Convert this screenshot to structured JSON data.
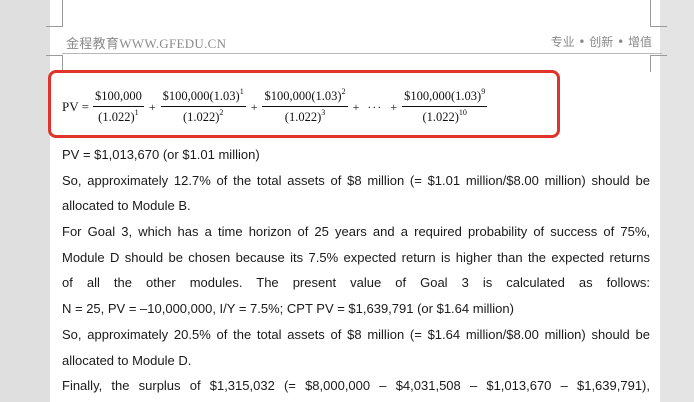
{
  "header": {
    "brand": "金程教育WWW.GFEDU.CN",
    "slogan": "专业 • 创新 • 增值"
  },
  "formula": {
    "lhs": "PV =",
    "terms": [
      {
        "num": "$100,000",
        "num_exp": "",
        "den": "(1.022)",
        "den_exp": "1"
      },
      {
        "num": "$100,000(1.03)",
        "num_exp": "1",
        "den": "(1.022)",
        "den_exp": "2"
      },
      {
        "num": "$100,000(1.03)",
        "num_exp": "2",
        "den": "(1.022)",
        "den_exp": "3"
      },
      {
        "num": "$100,000(1.03)",
        "num_exp": "9",
        "den": "(1.022)",
        "den_exp": "10"
      }
    ],
    "plus": "+",
    "ellipsis": "···"
  },
  "body": {
    "lines": [
      "PV = $1,013,670 (or $1.01 million)",
      "So, approximately 12.7% of the total assets of $8 million (= $1.01 million/$8.00 million) should be",
      "allocated to Module B.",
      "For Goal 3, which has a time horizon of 25 years and a required probability of success of 75%,",
      "Module D should be chosen because its 7.5% expected return is higher than the expected returns",
      "of all the other modules. The present value of Goal 3 is calculated as follows:",
      "N = 25, PV = –10,000,000, I/Y = 7.5%; CPT PV = $1,639,791 (or $1.64 million)",
      "So, approximately 20.5% of the total assets of $8 million (= $1.64 million/$8.00 million) should be",
      "allocated to Module D.",
      "Finally, the surplus of $1,315,032 (= $8,000,000 – $4,031,508 – $1,013,670 – $1,639,791),"
    ]
  },
  "colors": {
    "highlight_border": "#e0342b",
    "page": "#ffffff",
    "background": "#dfdfdf"
  }
}
